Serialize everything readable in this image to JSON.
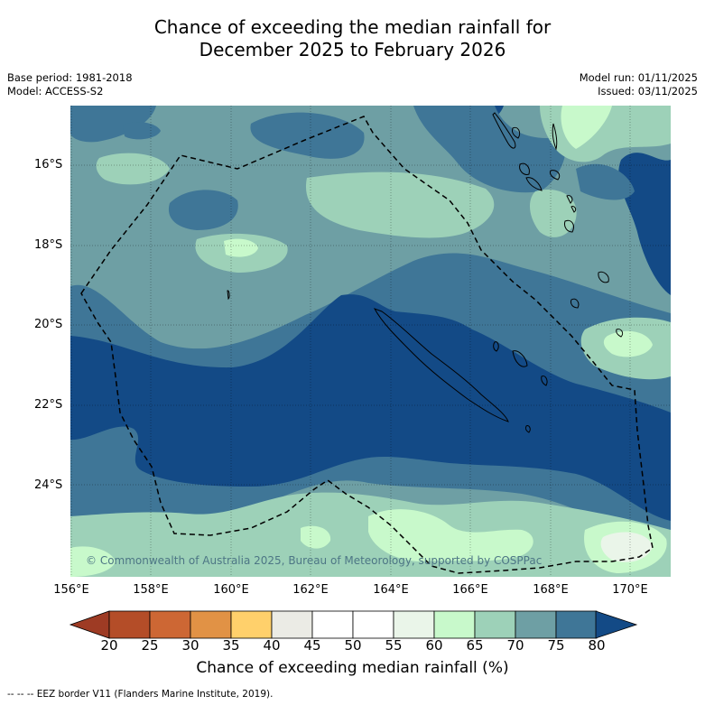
{
  "title": {
    "line1": "Chance of exceeding the median rainfall for",
    "line2": "December 2025 to February 2026"
  },
  "info": {
    "base_period": "Base period: 1981-2018",
    "model": "Model: ACCESS-S2",
    "model_run": "Model run: 01/11/2025",
    "issued": "Issued: 03/11/2025"
  },
  "map": {
    "lat_labels": [
      "16°S",
      "18°S",
      "20°S",
      "22°S",
      "24°S"
    ],
    "lon_labels": [
      "156°E",
      "158°E",
      "160°E",
      "162°E",
      "164°E",
      "166°E",
      "168°E",
      "170°E"
    ],
    "copyright": "© Commonwealth of Australia 2025, Bureau of Meteorology, supported by COSPPac",
    "region_colors": {
      "80+": "#134a86",
      "75-80": "#3f7697",
      "70-75": "#6e9fa4",
      "65-70": "#9dd1b8",
      "60-65": "#c8f9cb",
      "55-60": "#eaf5e9"
    }
  },
  "colorbar": {
    "ticks": [
      "20",
      "25",
      "30",
      "35",
      "40",
      "45",
      "50",
      "55",
      "60",
      "65",
      "70",
      "75",
      "80"
    ],
    "colors": [
      "#9e3b24",
      "#b44d28",
      "#cd6734",
      "#e19245",
      "#ffd06b",
      "#ebebe5",
      "#ffffff",
      "#ffffff",
      "#eaf5e9",
      "#c8f9cb",
      "#9dd1b8",
      "#6e9fa4",
      "#3f7697",
      "#134a86"
    ],
    "label": "Chance of exceeding median rainfall (%)"
  },
  "footer": "-- -- -- EEZ border V11 (Flanders Marine Institute, 2019)."
}
